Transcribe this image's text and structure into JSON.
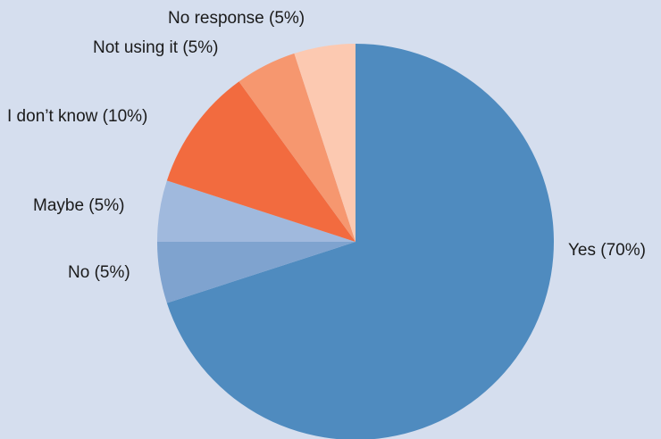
{
  "chart_data": {
    "type": "pie",
    "title": "",
    "start_angle_deg": 0,
    "direction": "clockwise",
    "slices": [
      {
        "label": "Yes (70%)",
        "category": "Yes",
        "value": 70,
        "color": "#4f8bbf"
      },
      {
        "label": "No (5%)",
        "category": "No",
        "value": 5,
        "color": "#7fa3cf"
      },
      {
        "label": "Maybe (5%)",
        "category": "Maybe",
        "value": 5,
        "color": "#a0b9dd"
      },
      {
        "label": "I don’t know (10%)",
        "category": "I don’t know",
        "value": 10,
        "color": "#f26b3f"
      },
      {
        "label": "Not using it (5%)",
        "category": "Not using it",
        "value": 5,
        "color": "#f6976f"
      },
      {
        "label": "No response (5%)",
        "category": "No response",
        "value": 5,
        "color": "#fcc9b1"
      }
    ],
    "background_color": "#d5deee",
    "legend": "none (labels beside slices)"
  }
}
